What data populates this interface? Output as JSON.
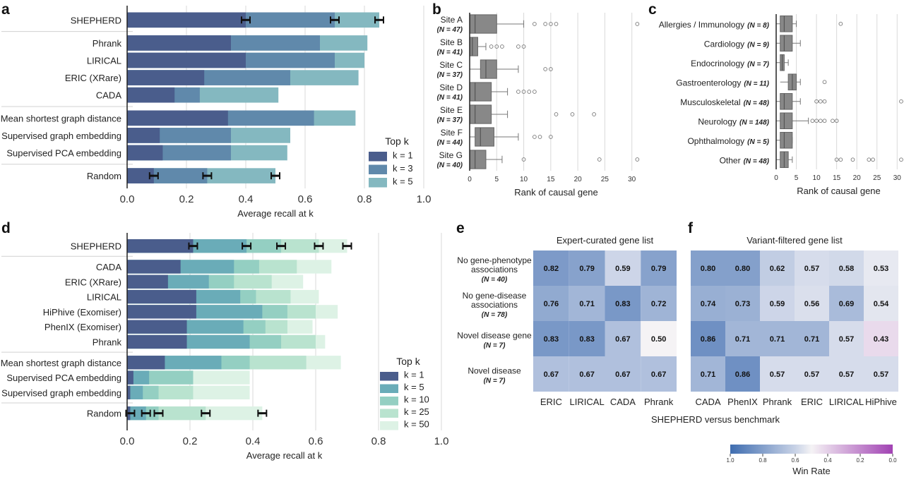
{
  "chart_data": [
    {
      "panel": "a",
      "type": "bar",
      "orientation": "horizontal",
      "stacked": true,
      "xlabel": "Average recall at k",
      "xlim": [
        0,
        1.0
      ],
      "xticks": [
        "0.0",
        "0.2",
        "0.4",
        "0.6",
        "0.8",
        "1.0"
      ],
      "legend_title": "Top k",
      "legend_position": "bottom-right",
      "colors": [
        "#4a5d8c",
        "#6089ab",
        "#84b8c0"
      ],
      "series_names": [
        "k = 1",
        "k = 3",
        "k = 5"
      ],
      "groups": [
        [
          {
            "label": "SHEPHERD",
            "values": [
              0.4,
              0.7,
              0.85
            ],
            "errorbars": true
          }
        ],
        [
          {
            "label": "Phrank",
            "values": [
              0.35,
              0.65,
              0.81
            ]
          },
          {
            "label": "LIRICAL",
            "values": [
              0.4,
              0.7,
              0.8
            ]
          },
          {
            "label": "ERIC (XRare)",
            "values": [
              0.26,
              0.55,
              0.78
            ]
          },
          {
            "label": "CADA",
            "values": [
              0.16,
              0.245,
              0.51
            ]
          }
        ],
        [
          {
            "label": "Mean shortest graph distance",
            "values": [
              0.34,
              0.63,
              0.77
            ]
          },
          {
            "label": "Supervised graph embedding",
            "values": [
              0.11,
              0.35,
              0.55
            ]
          },
          {
            "label": "Supervised PCA embedding",
            "values": [
              0.12,
              0.35,
              0.54
            ]
          }
        ],
        [
          {
            "label": "Random",
            "values": [
              0.09,
              0.27,
              0.5
            ],
            "errorbars": true
          }
        ]
      ]
    },
    {
      "panel": "b",
      "type": "box",
      "xlabel": "Rank of causal gene",
      "xlim": [
        0,
        32
      ],
      "xticks": [
        "0",
        "5",
        "10",
        "15",
        "20",
        "25",
        "30"
      ],
      "categories": [
        {
          "name": "Site A",
          "n": "(N = 47)",
          "whislo": 0,
          "q1": 0,
          "med": 1,
          "q3": 5,
          "whishi": 10,
          "fliers": [
            12,
            14,
            15,
            16,
            31
          ]
        },
        {
          "name": "Site B",
          "n": "(N = 41)",
          "whislo": 0,
          "q1": 0,
          "med": 0.5,
          "q3": 1.5,
          "whishi": 3,
          "fliers": [
            4,
            5,
            6,
            9,
            10
          ]
        },
        {
          "name": "Site C",
          "n": "(N = 37)",
          "whislo": 0,
          "q1": 2,
          "med": 3,
          "q3": 5,
          "whishi": 9,
          "fliers": [
            14,
            15
          ]
        },
        {
          "name": "Site D",
          "n": "(N = 41)",
          "whislo": 0,
          "q1": 0,
          "med": 1,
          "q3": 4,
          "whishi": 7,
          "fliers": [
            9,
            10,
            11,
            12
          ]
        },
        {
          "name": "Site E",
          "n": "(N = 37)",
          "whislo": 0,
          "q1": 0,
          "med": 1,
          "q3": 4,
          "whishi": 7,
          "fliers": [
            16,
            19,
            23
          ]
        },
        {
          "name": "Site F",
          "n": "(N = 44)",
          "whislo": 0,
          "q1": 1,
          "med": 2,
          "q3": 4.5,
          "whishi": 9,
          "fliers": [
            12,
            13,
            15
          ]
        },
        {
          "name": "Site G",
          "n": "(N = 40)",
          "whislo": 0,
          "q1": 0,
          "med": 1,
          "q3": 3,
          "whishi": 6,
          "fliers": [
            10,
            24,
            31
          ]
        }
      ]
    },
    {
      "panel": "c",
      "type": "box",
      "xlabel": "Rank of causal gene",
      "xlim": [
        0,
        31
      ],
      "xticks": [
        "0",
        "5",
        "10",
        "15",
        "20",
        "25",
        "30"
      ],
      "categories": [
        {
          "name": "Allergies / Immunology",
          "n": "(N = 8)",
          "whislo": 0,
          "q1": 1,
          "med": 2,
          "q3": 4,
          "whishi": 5,
          "fliers": [
            16
          ]
        },
        {
          "name": "Cardiology",
          "n": "(N = 9)",
          "whislo": 0,
          "q1": 1,
          "med": 2,
          "q3": 4,
          "whishi": 6,
          "fliers": []
        },
        {
          "name": "Endocrinology",
          "n": "(N = 7)",
          "whislo": 0,
          "q1": 1,
          "med": 1.5,
          "q3": 2,
          "whishi": 3,
          "fliers": []
        },
        {
          "name": "Gastroenterology",
          "n": "(N = 11)",
          "whislo": 1,
          "q1": 3,
          "med": 4,
          "q3": 5,
          "whishi": 6,
          "fliers": [
            12
          ]
        },
        {
          "name": "Musculoskeletal",
          "n": "(N = 48)",
          "whislo": 0,
          "q1": 1,
          "med": 2,
          "q3": 4,
          "whishi": 6,
          "fliers": [
            10,
            11,
            12,
            31
          ]
        },
        {
          "name": "Neurology",
          "n": "(N = 148)",
          "whislo": 0,
          "q1": 1,
          "med": 2,
          "q3": 4,
          "whishi": 8,
          "fliers": [
            9,
            10,
            11,
            12,
            14,
            15
          ]
        },
        {
          "name": "Ophthalmology",
          "n": "(N = 5)",
          "whislo": 0,
          "q1": 1,
          "med": 2,
          "q3": 4,
          "whishi": 4,
          "fliers": []
        },
        {
          "name": "Other",
          "n": "(N = 48)",
          "whislo": 0,
          "q1": 1,
          "med": 2,
          "q3": 3,
          "whishi": 4,
          "fliers": [
            15,
            16,
            19,
            23,
            24,
            31
          ]
        }
      ]
    },
    {
      "panel": "d",
      "type": "bar",
      "orientation": "horizontal",
      "stacked": true,
      "xlabel": "Average recall at k",
      "xlim": [
        0,
        1.0
      ],
      "xticks": [
        "0.0",
        "0.2",
        "0.4",
        "0.6",
        "0.8",
        "1.0"
      ],
      "legend_title": "Top k",
      "legend_position": "bottom-right",
      "colors": [
        "#4a5d8c",
        "#6aacb8",
        "#94cfc2",
        "#b9e3cf",
        "#ddf2e5"
      ],
      "series_names": [
        "k = 1",
        "k = 5",
        "k = 10",
        "k = 25",
        "k = 50"
      ],
      "groups": [
        [
          {
            "label": "SHEPHERD",
            "values": [
              0.21,
              0.38,
              0.49,
              0.61,
              0.7
            ],
            "errorbars": true
          }
        ],
        [
          {
            "label": "CADA",
            "values": [
              0.17,
              0.34,
              0.42,
              0.54,
              0.65
            ]
          },
          {
            "label": "ERIC (XRare)",
            "values": [
              0.13,
              0.26,
              0.34,
              0.46,
              0.56
            ]
          },
          {
            "label": "LIRICAL",
            "values": [
              0.22,
              0.36,
              0.41,
              0.52,
              0.61
            ]
          },
          {
            "label": "HiPhive (Exomiser)",
            "values": [
              0.22,
              0.43,
              0.51,
              0.6,
              0.67
            ]
          },
          {
            "label": "PhenIX (Exomiser)",
            "values": [
              0.19,
              0.37,
              0.44,
              0.51,
              0.59
            ]
          },
          {
            "label": "Phrank",
            "values": [
              0.19,
              0.39,
              0.49,
              0.6,
              0.63
            ]
          }
        ],
        [
          {
            "label": "Mean shortest graph distance",
            "values": [
              0.12,
              0.3,
              0.39,
              0.57,
              0.68
            ]
          },
          {
            "label": "Supervised PCA embedding",
            "values": [
              0.02,
              0.07,
              0.21,
              0.21,
              0.39
            ]
          },
          {
            "label": "Supervised graph embedding",
            "values": [
              0.01,
              0.05,
              0.1,
              0.21,
              0.39
            ]
          }
        ],
        [
          {
            "label": "Random",
            "values": [
              0.01,
              0.06,
              0.1,
              0.25,
              0.43
            ],
            "errorbars": true
          }
        ]
      ]
    },
    {
      "panel": "e",
      "type": "heatmap",
      "title": "Expert-curated gene list",
      "columns": [
        "ERIC",
        "LIRICAL",
        "CADA",
        "Phrank"
      ],
      "rows": [
        {
          "label": [
            "No gene-phenotype",
            "associations"
          ],
          "n": "(N = 40)",
          "values": [
            0.82,
            0.79,
            0.59,
            0.79
          ]
        },
        {
          "label": [
            "No gene-disease",
            "associations"
          ],
          "n": "(N = 78)",
          "values": [
            0.76,
            0.71,
            0.83,
            0.72
          ]
        },
        {
          "label": [
            "Novel disease gene"
          ],
          "n": "(N = 7)",
          "values": [
            0.83,
            0.83,
            0.67,
            0.5
          ]
        },
        {
          "label": [
            "Novel disease"
          ],
          "n": "(N = 7)",
          "values": [
            0.67,
            0.67,
            0.67,
            0.67
          ]
        }
      ]
    },
    {
      "panel": "f",
      "type": "heatmap",
      "title": "Variant-filtered gene list",
      "columns": [
        "CADA",
        "PhenIX",
        "Phrank",
        "ERIC",
        "LIRICAL",
        "HiPhive"
      ],
      "rows": [
        {
          "values": [
            0.8,
            0.8,
            0.62,
            0.57,
            0.58,
            0.53
          ]
        },
        {
          "values": [
            0.74,
            0.73,
            0.59,
            0.56,
            0.69,
            0.54
          ]
        },
        {
          "values": [
            0.86,
            0.71,
            0.71,
            0.71,
            0.57,
            0.43
          ]
        },
        {
          "values": [
            0.71,
            0.86,
            0.57,
            0.57,
            0.57,
            0.57
          ]
        }
      ]
    }
  ],
  "panel_labels": [
    "a",
    "b",
    "c",
    "d",
    "e",
    "f"
  ],
  "shared_xlabel_ef": "SHEPHERD versus benchmark",
  "colorbar": {
    "title": "Win Rate",
    "ticks": [
      "1.0",
      "0.8",
      "0.6",
      "0.4",
      "0.2",
      "0.0"
    ],
    "colors": [
      "#3f6db0",
      "#c8d2e6",
      "#f5f3f5",
      "#a142b3"
    ]
  }
}
